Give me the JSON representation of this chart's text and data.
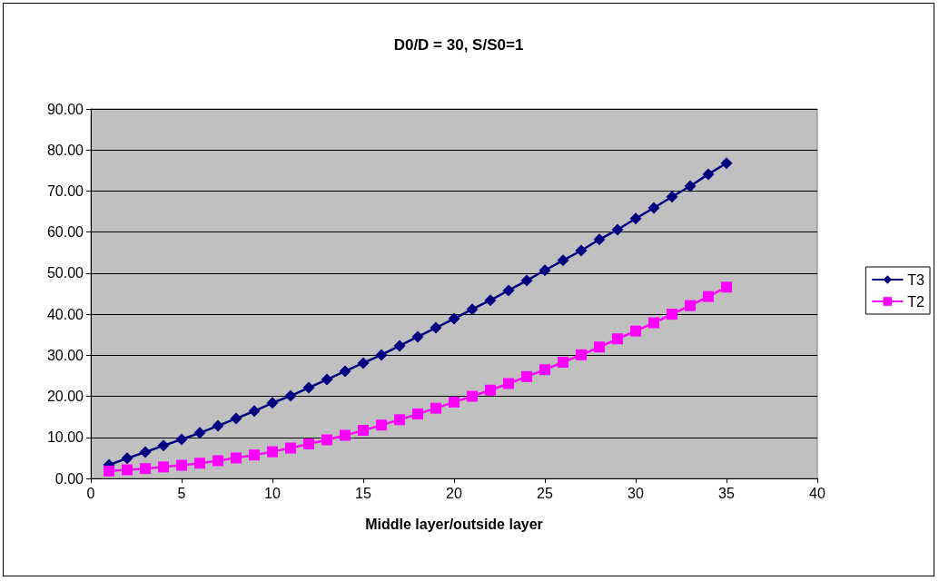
{
  "chart_data": {
    "type": "line",
    "title": "D0/D = 30, S/S0=1",
    "xlabel": "Middle layer/outside layer",
    "x": [
      1,
      2,
      3,
      4,
      5,
      6,
      7,
      8,
      9,
      10,
      11,
      12,
      13,
      14,
      15,
      16,
      17,
      18,
      19,
      20,
      21,
      22,
      23,
      24,
      25,
      26,
      27,
      28,
      29,
      30,
      31,
      32,
      33,
      34,
      35
    ],
    "series": [
      {
        "name": "T3",
        "color": "#000080",
        "marker": "diamond",
        "values": [
          3.3,
          4.9,
          6.4,
          8.0,
          9.5,
          11.1,
          12.8,
          14.6,
          16.4,
          18.4,
          20.1,
          22.1,
          24.1,
          26.1,
          28.1,
          30.1,
          32.3,
          34.5,
          36.7,
          38.9,
          41.2,
          43.4,
          45.8,
          48.2,
          50.7,
          53.1,
          55.5,
          58.2,
          60.6,
          63.3,
          65.9,
          68.6,
          71.2,
          74.1,
          76.8
        ]
      },
      {
        "name": "T2",
        "color": "#ff00ff",
        "marker": "square",
        "values": [
          1.8,
          2.1,
          2.4,
          2.8,
          3.2,
          3.7,
          4.3,
          5.0,
          5.7,
          6.5,
          7.4,
          8.4,
          9.4,
          10.5,
          11.7,
          13.0,
          14.3,
          15.7,
          17.1,
          18.6,
          20.0,
          21.5,
          23.1,
          24.8,
          26.5,
          28.3,
          30.1,
          32.0,
          34.0,
          35.9,
          37.9,
          40.0,
          42.1,
          44.3,
          46.6
        ]
      }
    ],
    "xlim": [
      0,
      40
    ],
    "xticks": [
      0,
      5,
      10,
      15,
      20,
      25,
      30,
      35,
      40
    ],
    "ylim": [
      0,
      90
    ],
    "yticks": [
      {
        "value": 0,
        "label": "0.00"
      },
      {
        "value": 10,
        "label": "10.00"
      },
      {
        "value": 20,
        "label": "20.00"
      },
      {
        "value": 30,
        "label": "30.00"
      },
      {
        "value": 40,
        "label": "40.00"
      },
      {
        "value": 50,
        "label": "50.00"
      },
      {
        "value": 60,
        "label": "60.00"
      },
      {
        "value": 70,
        "label": "70.00"
      },
      {
        "value": 80,
        "label": "80.00"
      },
      {
        "value": 90,
        "label": "90.00"
      }
    ],
    "grid": "y",
    "legend": "right",
    "line_style": "solid"
  }
}
